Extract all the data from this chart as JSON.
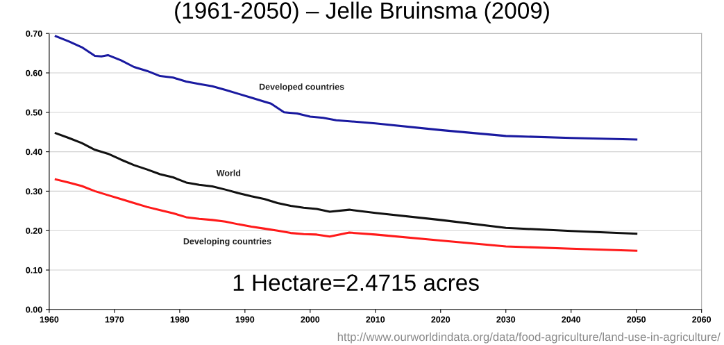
{
  "chart_data": {
    "type": "line",
    "title": "(1961-2050) – Jelle Bruinsma (2009)",
    "xlim": [
      1960,
      2060
    ],
    "xticks": [
      1960,
      1970,
      1980,
      1990,
      2000,
      2010,
      2020,
      2030,
      2040,
      2050,
      2060
    ],
    "ylim": [
      0,
      0.7
    ],
    "yticks": [
      {
        "value": 0,
        "label": "0.00"
      },
      {
        "value": 0.1,
        "label": "0.10"
      },
      {
        "value": 0.2,
        "label": "0.20"
      },
      {
        "value": 0.3,
        "label": "0.30"
      },
      {
        "value": 0.4,
        "label": "0.40"
      },
      {
        "value": 0.5,
        "label": "0.50"
      },
      {
        "value": 0.6,
        "label": "0.60"
      },
      {
        "value": 0.7,
        "label": "0.70"
      }
    ],
    "grid": "y",
    "legend": false,
    "marker": "none",
    "line_style": "solid",
    "series": [
      {
        "name": "Developed countries",
        "color": "#1a1aa0",
        "x": [
          1961,
          1963,
          1965,
          1967,
          1968,
          1969,
          1971,
          1973,
          1975,
          1977,
          1979,
          1981,
          1983,
          1985,
          1987,
          1989,
          1991,
          1993,
          1994,
          1996,
          1998,
          2000,
          2002,
          2004,
          2010,
          2020,
          2030,
          2040,
          2050
        ],
        "values": [
          0.693,
          0.68,
          0.665,
          0.643,
          0.642,
          0.645,
          0.632,
          0.615,
          0.605,
          0.592,
          0.588,
          0.578,
          0.572,
          0.566,
          0.557,
          0.547,
          0.537,
          0.527,
          0.522,
          0.5,
          0.497,
          0.489,
          0.486,
          0.48,
          0.472,
          0.455,
          0.44,
          0.435,
          0.431
        ]
      },
      {
        "name": "World",
        "color": "#111111",
        "x": [
          1961,
          1963,
          1965,
          1967,
          1969,
          1971,
          1973,
          1975,
          1977,
          1979,
          1981,
          1983,
          1985,
          1987,
          1989,
          1991,
          1993,
          1995,
          1997,
          1999,
          2001,
          2003,
          2006,
          2010,
          2020,
          2030,
          2040,
          2050
        ],
        "values": [
          0.447,
          0.435,
          0.422,
          0.405,
          0.395,
          0.38,
          0.366,
          0.355,
          0.343,
          0.335,
          0.322,
          0.316,
          0.312,
          0.304,
          0.295,
          0.287,
          0.28,
          0.27,
          0.263,
          0.258,
          0.255,
          0.248,
          0.253,
          0.245,
          0.227,
          0.207,
          0.199,
          0.192
        ]
      },
      {
        "name": "Developing countries",
        "color": "#ff1a1a",
        "x": [
          1961,
          1963,
          1965,
          1967,
          1969,
          1971,
          1973,
          1975,
          1977,
          1979,
          1981,
          1983,
          1985,
          1987,
          1989,
          1991,
          1993,
          1995,
          1997,
          1999,
          2001,
          2003,
          2006,
          2010,
          2020,
          2030,
          2040,
          2050
        ],
        "values": [
          0.33,
          0.322,
          0.313,
          0.3,
          0.29,
          0.28,
          0.27,
          0.26,
          0.252,
          0.244,
          0.234,
          0.23,
          0.227,
          0.223,
          0.216,
          0.21,
          0.205,
          0.2,
          0.194,
          0.191,
          0.19,
          0.185,
          0.195,
          0.19,
          0.175,
          0.16,
          0.154,
          0.149
        ]
      }
    ],
    "annotations": [
      "1 Hectare=2.4715 acres",
      "http://www.ourworldindata.org/data/food-agriculture/land-use-in-agriculture/"
    ]
  }
}
